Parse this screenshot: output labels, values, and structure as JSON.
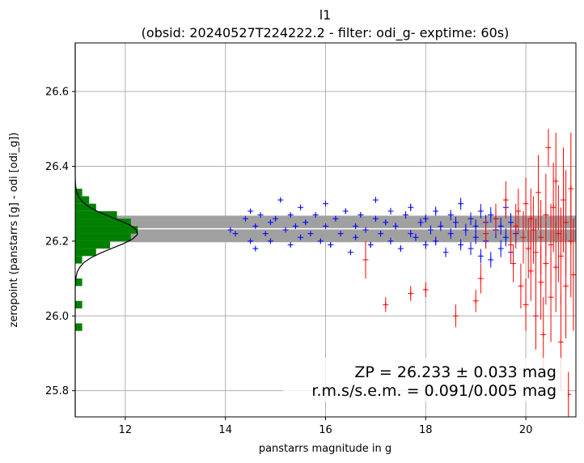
{
  "chart_data": {
    "type": "scatter",
    "title_line1": "l1",
    "title_line2": "(obsid: 20240527T224222.2 - filter: odi_g- exptime: 60s)",
    "xlabel": "panstarrs magnitude in g",
    "ylabel": "zeropoint (panstarrs [g] - odi [odi_g])",
    "xlim": [
      11.0,
      21.0
    ],
    "ylim": [
      25.73,
      26.73
    ],
    "xticks": [
      "12",
      "14",
      "16",
      "18",
      "20"
    ],
    "yticks": [
      "25.8",
      "26.0",
      "26.2",
      "26.4",
      "26.6"
    ],
    "grid": true,
    "zeropoint": 26.233,
    "zeropoint_band": [
      26.197,
      26.268
    ],
    "annotation_line1": "ZP = 26.233 ± 0.033 mag",
    "annotation_line2": "r.m.s/s.e.m. = 0.091/0.005 mag",
    "series": [
      {
        "role": "used stars",
        "color": "#0000ff",
        "x": [
          14.1,
          14.2,
          14.4,
          14.5,
          14.5,
          14.6,
          14.6,
          14.7,
          14.8,
          14.9,
          14.9,
          15.0,
          15.1,
          15.2,
          15.3,
          15.3,
          15.4,
          15.5,
          15.5,
          15.6,
          15.7,
          15.8,
          15.9,
          16.0,
          16.0,
          16.1,
          16.2,
          16.3,
          16.4,
          16.5,
          16.6,
          16.6,
          16.7,
          16.8,
          16.9,
          17.0,
          17.0,
          17.1,
          17.2,
          17.3,
          17.3,
          17.4,
          17.5,
          17.6,
          17.7,
          17.7,
          17.8,
          17.9,
          18.0,
          18.0,
          18.1,
          18.2,
          18.2,
          18.3,
          18.4,
          18.5,
          18.5,
          18.6,
          18.7,
          18.7,
          18.8,
          18.9,
          18.9,
          19.0,
          19.0,
          19.1,
          19.1,
          19.2,
          19.2,
          19.3,
          19.3,
          19.4,
          19.4,
          19.5,
          19.5,
          19.6,
          19.6,
          19.7,
          19.7,
          19.8
        ],
        "y": [
          26.23,
          26.22,
          26.26,
          26.2,
          26.28,
          26.24,
          26.18,
          26.27,
          26.22,
          26.25,
          26.2,
          26.26,
          26.31,
          26.23,
          26.27,
          26.19,
          26.24,
          26.29,
          26.21,
          26.25,
          26.22,
          26.27,
          26.2,
          26.24,
          26.3,
          26.19,
          26.26,
          26.22,
          26.28,
          26.17,
          26.24,
          26.21,
          26.27,
          26.23,
          26.19,
          26.26,
          26.31,
          26.22,
          26.25,
          26.2,
          26.28,
          26.24,
          26.18,
          26.27,
          26.22,
          26.29,
          26.21,
          26.25,
          26.19,
          26.26,
          26.23,
          26.28,
          26.2,
          26.24,
          26.17,
          26.27,
          26.22,
          26.25,
          26.19,
          26.3,
          26.23,
          26.26,
          26.18,
          26.24,
          26.21,
          26.28,
          26.16,
          26.25,
          26.2,
          26.27,
          26.15,
          26.23,
          26.26,
          26.18,
          26.24,
          26.21,
          26.29,
          26.17,
          26.25,
          26.22
        ],
        "yerr": [
          0.004,
          0.004,
          0.004,
          0.004,
          0.004,
          0.005,
          0.005,
          0.005,
          0.005,
          0.005,
          0.005,
          0.005,
          0.005,
          0.005,
          0.005,
          0.005,
          0.006,
          0.006,
          0.006,
          0.006,
          0.006,
          0.006,
          0.006,
          0.006,
          0.006,
          0.006,
          0.007,
          0.007,
          0.007,
          0.007,
          0.007,
          0.007,
          0.007,
          0.008,
          0.008,
          0.008,
          0.008,
          0.008,
          0.008,
          0.009,
          0.009,
          0.009,
          0.009,
          0.01,
          0.01,
          0.01,
          0.01,
          0.011,
          0.011,
          0.011,
          0.012,
          0.012,
          0.012,
          0.013,
          0.013,
          0.014,
          0.014,
          0.015,
          0.015,
          0.016,
          0.016,
          0.017,
          0.017,
          0.018,
          0.018,
          0.019,
          0.019,
          0.02,
          0.02,
          0.021,
          0.021,
          0.022,
          0.022,
          0.023,
          0.023,
          0.024,
          0.024,
          0.025,
          0.025,
          0.026
        ]
      },
      {
        "role": "rejected stars",
        "color": "#ff0000",
        "x": [
          16.8,
          17.2,
          17.7,
          18.0,
          18.6,
          19.0,
          19.1,
          19.2,
          19.4,
          19.6,
          19.7,
          19.75,
          19.8,
          19.85,
          19.9,
          19.95,
          20.0,
          20.0,
          20.05,
          20.1,
          20.1,
          20.15,
          20.2,
          20.2,
          20.25,
          20.3,
          20.3,
          20.35,
          20.4,
          20.4,
          20.45,
          20.5,
          20.5,
          20.55,
          20.6,
          20.6,
          20.65,
          20.7,
          20.7,
          20.75,
          20.8,
          20.8,
          20.85,
          20.9,
          20.9,
          20.95
        ],
        "y": [
          26.15,
          26.03,
          26.06,
          26.07,
          26.0,
          26.04,
          26.1,
          26.22,
          26.26,
          26.31,
          26.19,
          26.14,
          26.24,
          26.28,
          26.08,
          26.21,
          26.03,
          26.3,
          26.18,
          26.12,
          26.26,
          26.23,
          26.0,
          26.17,
          26.33,
          26.09,
          26.21,
          25.95,
          26.27,
          26.14,
          26.45,
          26.19,
          26.05,
          26.29,
          26.13,
          26.36,
          26.22,
          25.93,
          26.16,
          26.31,
          26.08,
          26.25,
          25.79,
          26.2,
          26.34,
          26.11
        ],
        "yerr": [
          0.05,
          0.02,
          0.02,
          0.02,
          0.03,
          0.03,
          0.04,
          0.04,
          0.04,
          0.05,
          0.05,
          0.05,
          0.06,
          0.06,
          0.06,
          0.07,
          0.07,
          0.07,
          0.08,
          0.08,
          0.08,
          0.09,
          0.09,
          0.09,
          0.1,
          0.1,
          0.1,
          0.1,
          0.11,
          0.11,
          0.05,
          0.11,
          0.12,
          0.12,
          0.12,
          0.13,
          0.13,
          0.13,
          0.13,
          0.14,
          0.14,
          0.14,
          0.06,
          0.15,
          0.15,
          0.15
        ]
      }
    ],
    "histogram": {
      "color": "#008000",
      "bin_edges": [
        25.96,
        25.98,
        26.0,
        26.02,
        26.04,
        26.06,
        26.08,
        26.1,
        26.12,
        26.14,
        26.16,
        26.18,
        26.2,
        26.22,
        26.24,
        26.26,
        26.28,
        26.3,
        26.32,
        26.34
      ],
      "counts": [
        1,
        0,
        0,
        1,
        0,
        0,
        1,
        0,
        0,
        1,
        3,
        5,
        8,
        9,
        8,
        6,
        3,
        2,
        1
      ]
    },
    "gaussian": {
      "mean": 26.222,
      "sigma": 0.04,
      "peak_count": 9
    }
  }
}
